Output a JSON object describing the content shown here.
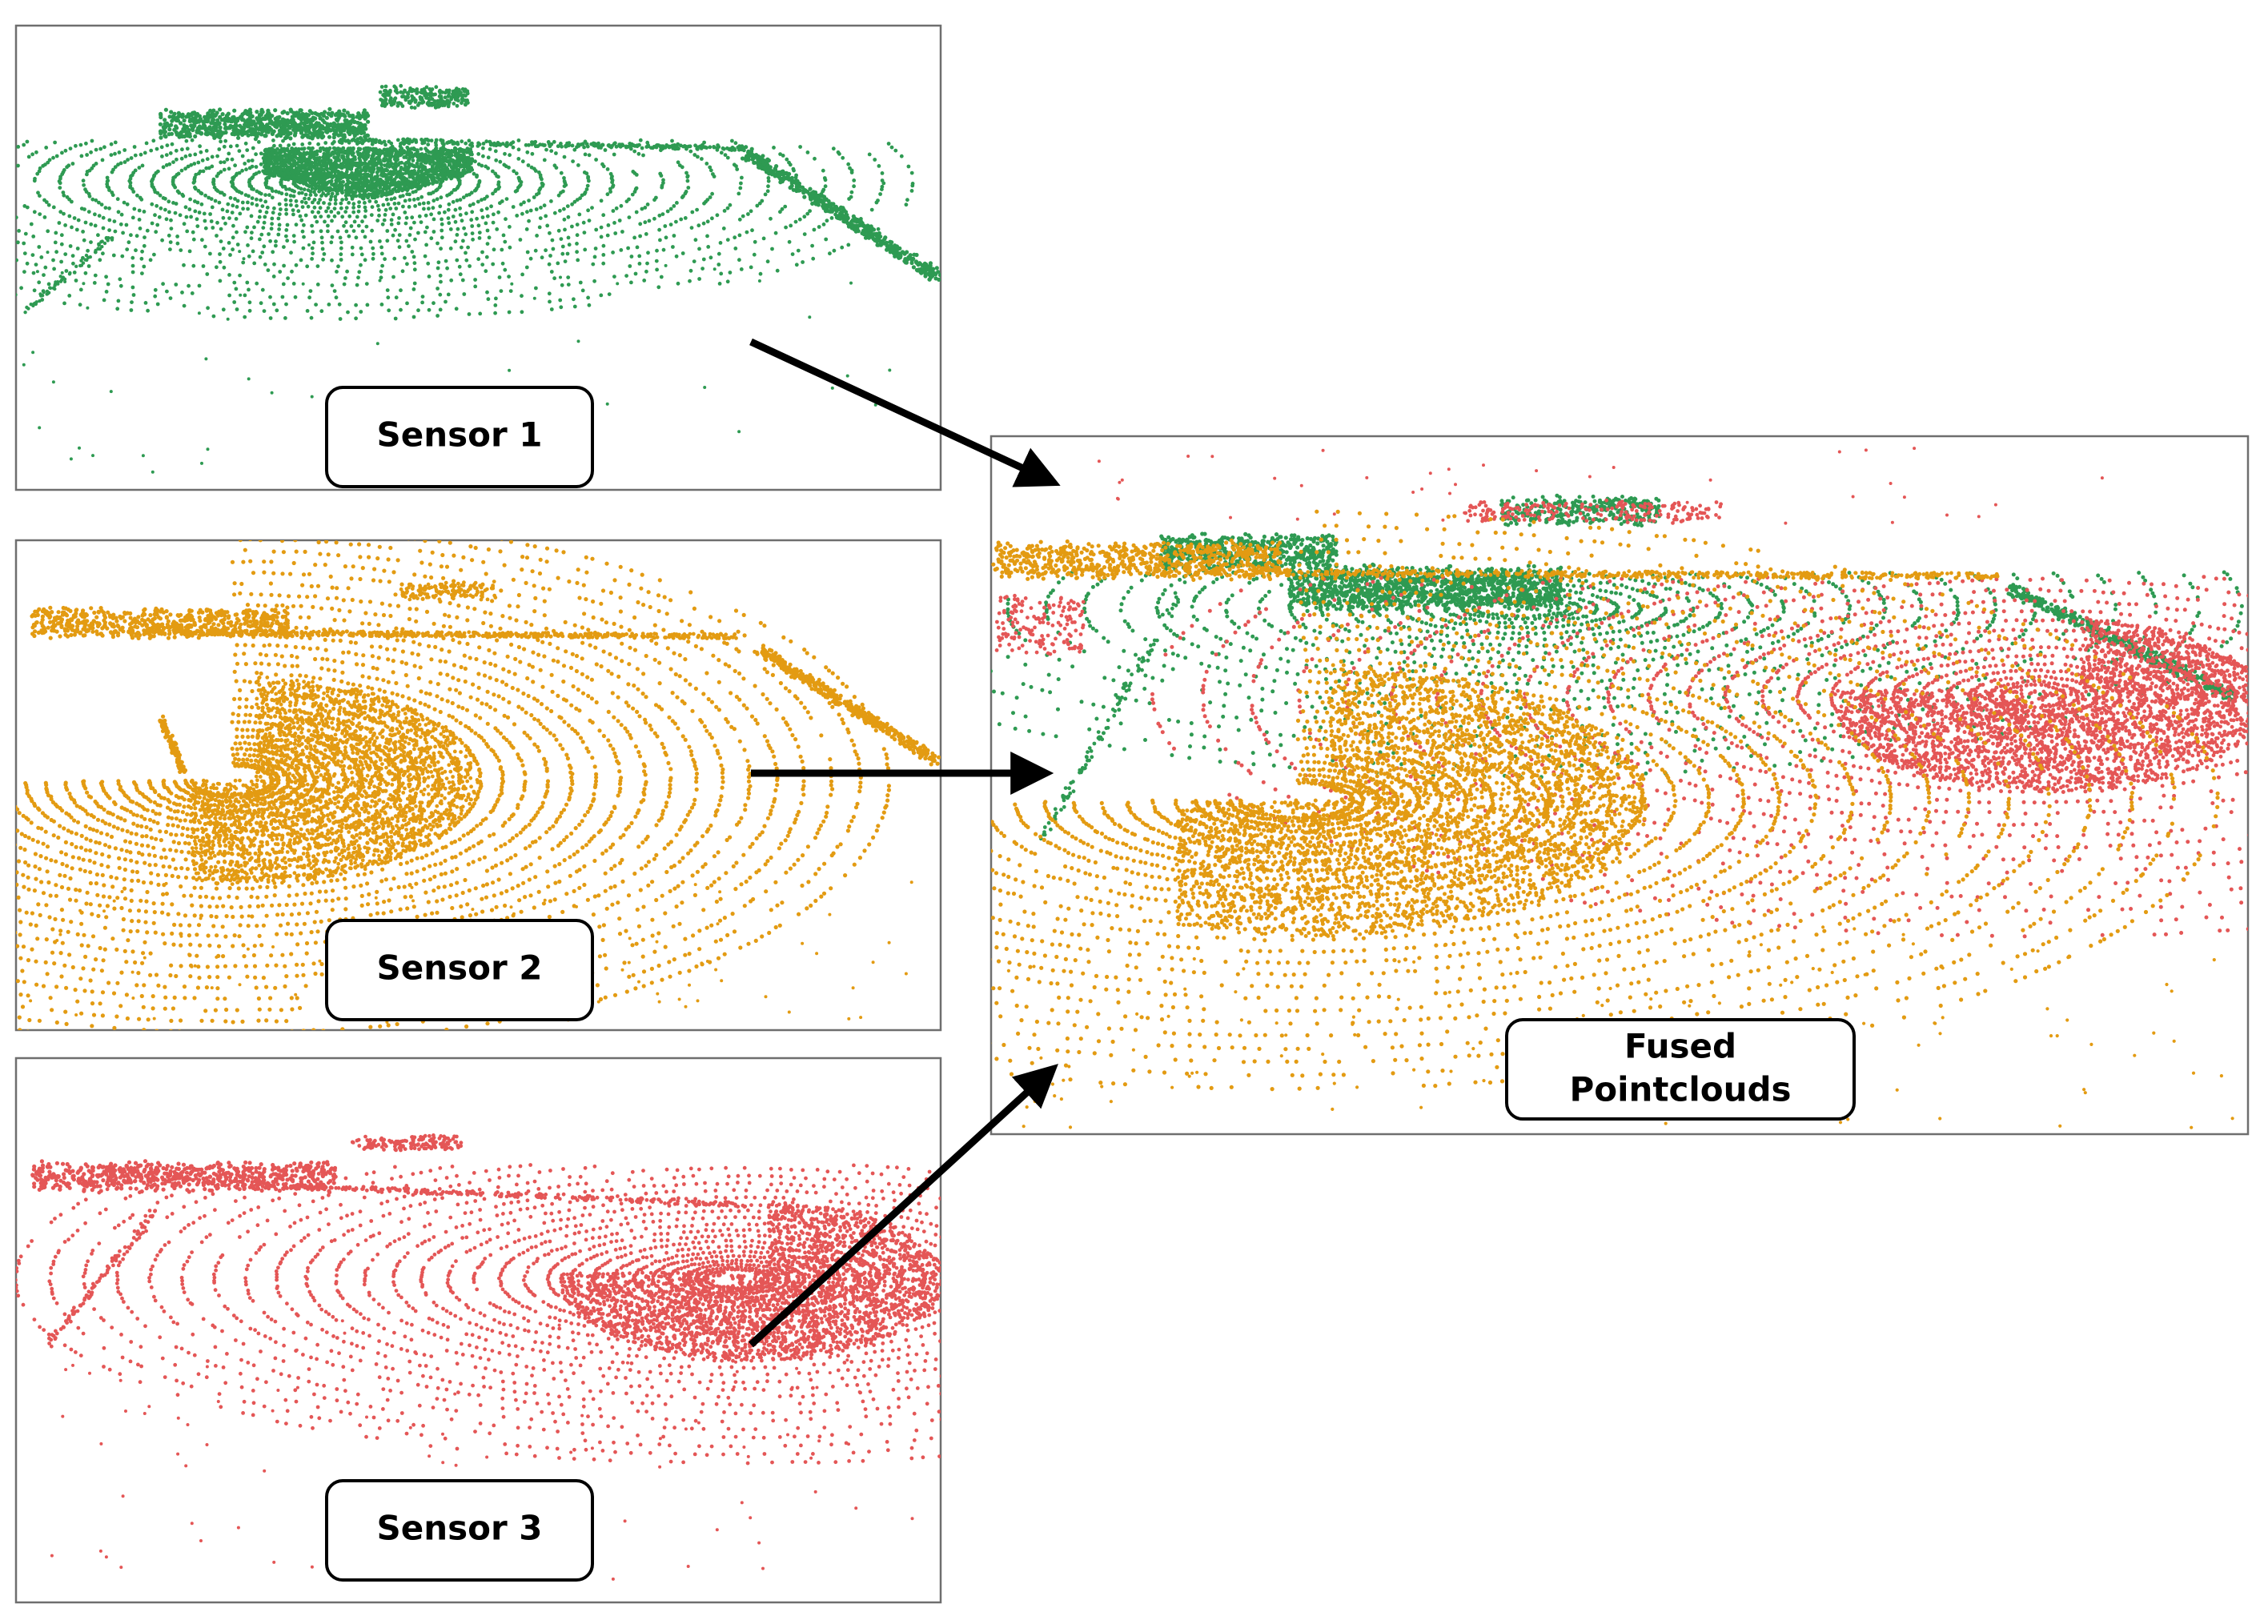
{
  "colors": {
    "sensor_1": "#2e9a52",
    "sensor_2": "#e39b12",
    "sensor_3": "#e45656",
    "arrow": "#000000",
    "frame": "#6e6e6e"
  },
  "panels": {
    "sensor_1": {
      "label": "Sensor 1"
    },
    "sensor_2": {
      "label": "Sensor 2"
    },
    "sensor_3": {
      "label": "Sensor 3"
    },
    "fused": {
      "label_line1": "Fused",
      "label_line2": "Pointclouds"
    }
  },
  "arrows": [
    {
      "from": "sensor_1",
      "to": "fused"
    },
    {
      "from": "sensor_2",
      "to": "fused"
    },
    {
      "from": "sensor_3",
      "to": "fused"
    }
  ]
}
